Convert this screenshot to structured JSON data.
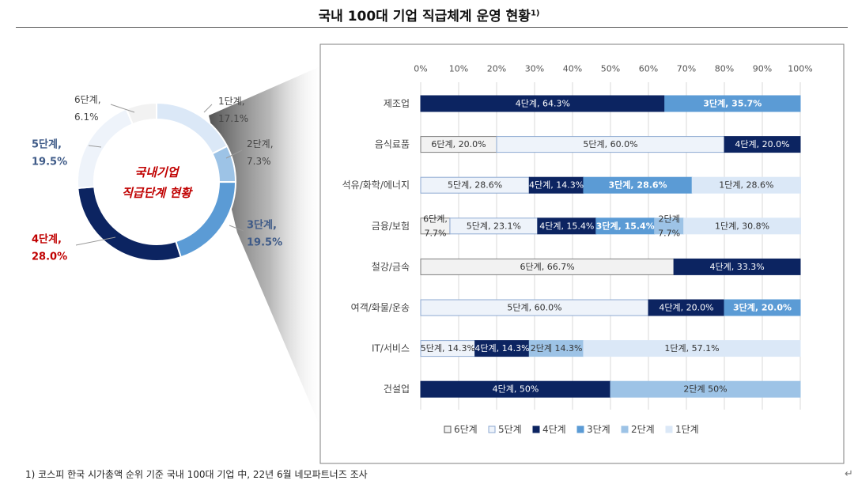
{
  "title": "국내 100대 기업 직급체계 운영 현황",
  "title_superscript": "1)",
  "footnote": "1) 코스피 한국 시가총액 순위 기준 국내 100대 기업 中, 22년 6월 네모파트너즈 조사",
  "return_mark": "↵",
  "colors": {
    "level6": "#f2f2f2",
    "level5": "#eef3fa",
    "level4": "#0c2461",
    "level3": "#5b9bd5",
    "level2": "#9dc3e6",
    "level1": "#dbe8f7",
    "highlight_red": "#c00000",
    "callout_blue": "#3f5b88"
  },
  "chart_data": [
    {
      "type": "pie",
      "variant": "donut",
      "center_label_line1": "국내기업",
      "center_label_line2": "직급단계 현황",
      "slices": [
        {
          "name": "1단계",
          "value": 17.1,
          "label_text": "1단계,",
          "value_text": "17.1%",
          "color": "#dbe8f7"
        },
        {
          "name": "2단계",
          "value": 7.3,
          "label_text": "2단계,",
          "value_text": "7.3%",
          "color": "#9dc3e6"
        },
        {
          "name": "3단계",
          "value": 19.5,
          "label_text": "3단계,",
          "value_text": "19.5%",
          "color": "#5b9bd5"
        },
        {
          "name": "4단계",
          "value": 28.0,
          "label_text": "4단계,",
          "value_text": "28.0%",
          "color": "#0c2461"
        },
        {
          "name": "5단계",
          "value": 19.5,
          "label_text": "5단계,",
          "value_text": "19.5%",
          "color": "#eef3fa"
        },
        {
          "name": "6단계",
          "value": 6.1,
          "label_text": "6단계,",
          "value_text": "6.1%",
          "color": "#f2f2f2"
        }
      ]
    },
    {
      "type": "bar",
      "orientation": "horizontal",
      "stacked": "100%",
      "x_ticks": [
        "0%",
        "10%",
        "20%",
        "30%",
        "40%",
        "50%",
        "60%",
        "70%",
        "80%",
        "90%",
        "100%"
      ],
      "xlim": [
        0,
        100
      ],
      "categories": [
        "제조업",
        "음식료품",
        "석유/화학/에너지",
        "금융/보험",
        "철강/금속",
        "여객/화물/운송",
        "IT/서비스",
        "건설업"
      ],
      "legend": [
        "6단계",
        "5단계",
        "4단계",
        "3단계",
        "2단계",
        "1단계"
      ],
      "legend_position": "bottom",
      "rows": [
        {
          "category": "제조업",
          "segments": [
            {
              "stage": "4단계",
              "value": 64.3,
              "label": "4단계, 64.3%"
            },
            {
              "stage": "3단계",
              "value": 35.7,
              "label": "3단계, 35.7%"
            }
          ]
        },
        {
          "category": "음식료품",
          "segments": [
            {
              "stage": "6단계",
              "value": 20.0,
              "label": "6단계, 20.0%"
            },
            {
              "stage": "5단계",
              "value": 60.0,
              "label": "5단계, 60.0%"
            },
            {
              "stage": "4단계",
              "value": 20.0,
              "label": "4단계, 20.0%"
            }
          ]
        },
        {
          "category": "석유/화학/에너지",
          "segments": [
            {
              "stage": "5단계",
              "value": 28.6,
              "label": "5단계, 28.6%"
            },
            {
              "stage": "4단계",
              "value": 14.3,
              "label": "4단계, 14.3%"
            },
            {
              "stage": "3단계",
              "value": 28.6,
              "label": "3단계, 28.6%"
            },
            {
              "stage": "1단계",
              "value": 28.6,
              "label": "1단계, 28.6%"
            }
          ]
        },
        {
          "category": "금융/보험",
          "segments": [
            {
              "stage": "6단계",
              "value": 7.7,
              "label_lines": [
                "6단계,",
                "7.7%"
              ]
            },
            {
              "stage": "5단계",
              "value": 23.1,
              "label": "5단계, 23.1%"
            },
            {
              "stage": "4단계",
              "value": 15.4,
              "label": "4단계, 15.4%"
            },
            {
              "stage": "3단계",
              "value": 15.4,
              "label": "3단계, 15.4%"
            },
            {
              "stage": "2단계",
              "value": 7.7,
              "label_lines": [
                "2단계",
                "7.7%"
              ]
            },
            {
              "stage": "1단계",
              "value": 30.8,
              "label": "1단계, 30.8%"
            }
          ]
        },
        {
          "category": "철강/금속",
          "segments": [
            {
              "stage": "6단계",
              "value": 66.7,
              "label": "6단계, 66.7%"
            },
            {
              "stage": "4단계",
              "value": 33.3,
              "label": "4단계, 33.3%"
            }
          ]
        },
        {
          "category": "여객/화물/운송",
          "segments": [
            {
              "stage": "5단계",
              "value": 60.0,
              "label": "5단계, 60.0%"
            },
            {
              "stage": "4단계",
              "value": 20.0,
              "label": "4단계, 20.0%"
            },
            {
              "stage": "3단계",
              "value": 20.0,
              "label": "3단계, 20.0%"
            }
          ]
        },
        {
          "category": "IT/서비스",
          "segments": [
            {
              "stage": "5단계",
              "value": 14.3,
              "label": "5단계, 14.3%"
            },
            {
              "stage": "4단계",
              "value": 14.3,
              "label": "4단계, 14.3%"
            },
            {
              "stage": "2단계",
              "value": 14.3,
              "label": "2단계 14.3%"
            },
            {
              "stage": "1단계",
              "value": 57.1,
              "label": "1단계, 57.1%"
            }
          ]
        },
        {
          "category": "건설업",
          "segments": [
            {
              "stage": "4단계",
              "value": 50,
              "label": "4단계, 50%"
            },
            {
              "stage": "2단계",
              "value": 50,
              "label": "2단계  50%"
            }
          ]
        }
      ]
    }
  ]
}
